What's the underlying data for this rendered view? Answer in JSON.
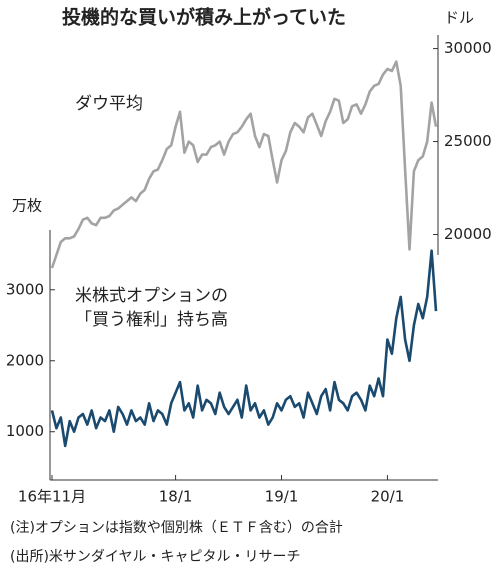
{
  "chart_data": {
    "type": "line",
    "title": "投機的な買いが積み上がっていた",
    "y_unit": "万枚",
    "y2_unit": "ドル",
    "categories": [
      "16年11月",
      null,
      null,
      null,
      null,
      null,
      null,
      null,
      null,
      null,
      null,
      null,
      null,
      null,
      null,
      null,
      null,
      null,
      null,
      null,
      null,
      null,
      null,
      null,
      null,
      null,
      null,
      null,
      "18/1",
      null,
      null,
      null,
      null,
      null,
      null,
      null,
      null,
      null,
      null,
      null,
      null,
      null,
      null,
      null,
      null,
      null,
      null,
      null,
      null,
      null,
      null,
      null,
      "19/1",
      null,
      null,
      null,
      null,
      null,
      null,
      null,
      null,
      null,
      null,
      null,
      null,
      null,
      null,
      null,
      null,
      null,
      null,
      null,
      null,
      null,
      null,
      null,
      "20/1",
      null,
      null,
      null,
      null,
      null,
      null,
      null,
      null,
      null,
      null,
      null
    ],
    "series": [
      {
        "name": "ダウ平均",
        "color": "#a3a3a3",
        "axis": "y2",
        "values": [
          18200,
          18900,
          19600,
          19800,
          19800,
          19900,
          20300,
          20800,
          20900,
          20600,
          20500,
          20900,
          20900,
          21000,
          21300,
          21400,
          21600,
          21800,
          22000,
          21800,
          22200,
          22400,
          23000,
          23400,
          23500,
          24000,
          24600,
          24800,
          25800,
          26600,
          24400,
          25000,
          24800,
          23900,
          24300,
          24300,
          24700,
          24800,
          25000,
          24300,
          25000,
          25400,
          25500,
          25800,
          26200,
          26500,
          25300,
          24700,
          25400,
          25300,
          24000,
          22800,
          24000,
          24500,
          25500,
          26000,
          25800,
          25500,
          26300,
          26500,
          25900,
          25300,
          26100,
          26600,
          27300,
          27200,
          26000,
          26200,
          26900,
          27000,
          26500,
          27000,
          27700,
          28000,
          28100,
          28600,
          28900,
          28800,
          29300,
          28000,
          23500,
          19200,
          23400,
          24000,
          24200,
          25000,
          27100,
          25800
        ]
      },
      {
        "name": "米株式オプションの「買う権利」持ち高",
        "color": "#1b4a6f",
        "values": [
          1300,
          1050,
          1200,
          800,
          1150,
          1000,
          1200,
          1250,
          1100,
          1300,
          1050,
          1200,
          1150,
          1300,
          1000,
          1350,
          1250,
          1100,
          1300,
          1150,
          1200,
          1100,
          1400,
          1150,
          1300,
          1250,
          1100,
          1400,
          1550,
          1700,
          1300,
          1400,
          1200,
          1650,
          1300,
          1450,
          1400,
          1250,
          1550,
          1350,
          1250,
          1350,
          1450,
          1200,
          1650,
          1300,
          1400,
          1200,
          1300,
          1100,
          1200,
          1400,
          1300,
          1450,
          1500,
          1350,
          1400,
          1200,
          1550,
          1400,
          1250,
          1500,
          1600,
          1300,
          1700,
          1450,
          1400,
          1300,
          1500,
          1550,
          1450,
          1300,
          1650,
          1500,
          1750,
          1500,
          2300,
          2100,
          2600,
          2900,
          2300,
          2000,
          2500,
          2800,
          2600,
          2900,
          3550,
          2700
        ]
      }
    ],
    "ylim": [
      320,
      6660
    ],
    "yticks": [
      1000,
      2000,
      3000
    ],
    "y2lim": [
      6800,
      31000
    ],
    "y2ticks": [
      20000,
      25000,
      30000
    ],
    "notes": [
      "(注)オプションは指数や個別株（ＥＴＦ含む）の合計",
      "(出所)米サンダイヤル・キャピタル・リサーチ"
    ]
  }
}
